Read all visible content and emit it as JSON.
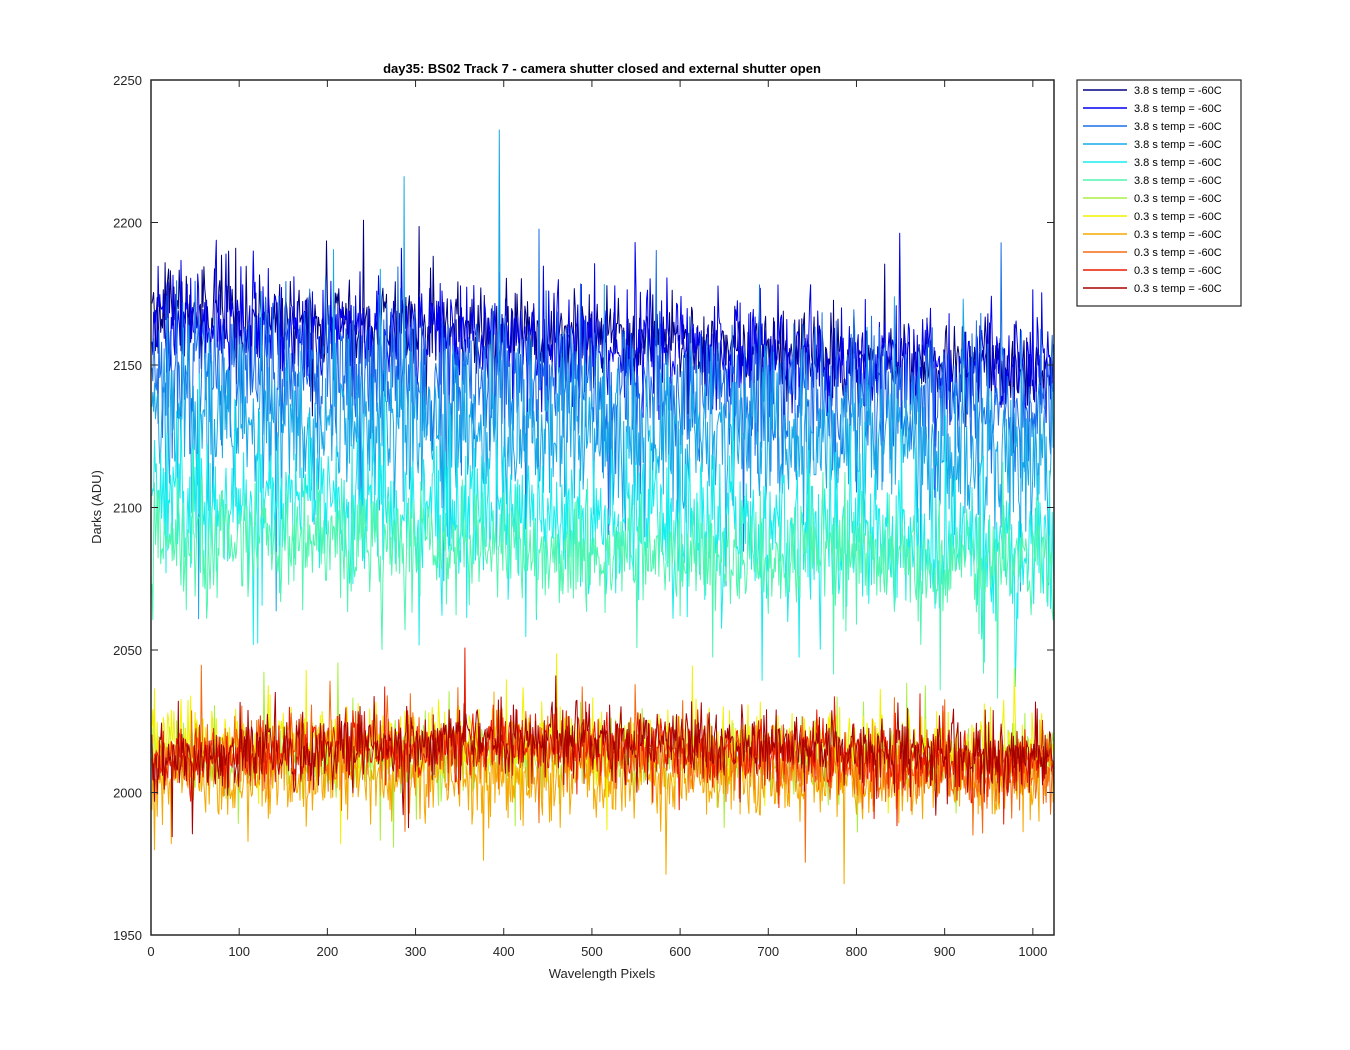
{
  "chart_data": {
    "type": "line",
    "title": "day35: BS02  Track 7 - camera shutter closed and external shutter open",
    "xlabel": "Wavelength Pixels",
    "ylabel": "Darks (ADU)",
    "xlim": [
      0,
      1024
    ],
    "ylim": [
      1950,
      2250
    ],
    "xticks": [
      0,
      100,
      200,
      300,
      400,
      500,
      600,
      700,
      800,
      900,
      1000
    ],
    "yticks": [
      1950,
      2000,
      2050,
      2100,
      2150,
      2200,
      2250
    ],
    "grid": false,
    "legend_position": "outside-top-right",
    "series": [
      {
        "name": "3.8 s temp = -60C",
        "color": "#00007f",
        "mean_start": 2170,
        "mean_end": 2148,
        "spread": 10
      },
      {
        "name": "3.8 s temp = -60C",
        "color": "#0000ee",
        "mean_start": 2165,
        "mean_end": 2148,
        "spread": 14
      },
      {
        "name": "3.8 s temp = -60C",
        "color": "#1a6fe8",
        "mean_start": 2148,
        "mean_end": 2135,
        "spread": 18
      },
      {
        "name": "3.8 s temp = -60C",
        "color": "#17a8e8",
        "mean_start": 2130,
        "mean_end": 2120,
        "spread": 20
      },
      {
        "name": "3.8 s temp = -60C",
        "color": "#18eded",
        "mean_start": 2105,
        "mean_end": 2085,
        "spread": 18
      },
      {
        "name": "3.8 s temp = -60C",
        "color": "#50f5b0",
        "mean_start": 2090,
        "mean_end": 2080,
        "spread": 14
      },
      {
        "name": "0.3 s temp = -60C",
        "color": "#a8f040",
        "mean_start": 2012,
        "mean_end": 2012,
        "spread": 9
      },
      {
        "name": "0.3 s temp = -60C",
        "color": "#f2f200",
        "mean_start": 2018,
        "mean_end": 2015,
        "spread": 10
      },
      {
        "name": "0.3 s temp = -60C",
        "color": "#f5a800",
        "mean_start": 2005,
        "mean_end": 2005,
        "spread": 10
      },
      {
        "name": "0.3 s temp = -60C",
        "color": "#f56a10",
        "mean_start": 2012,
        "mean_end": 2010,
        "spread": 9
      },
      {
        "name": "0.3 s temp = -60C",
        "color": "#ec1a00",
        "mean_start": 2010,
        "mean_end": 2015,
        "spread": 8
      },
      {
        "name": "0.3 s temp = -60C",
        "color": "#a80000",
        "mean_start": 2010,
        "mean_end": 2018,
        "spread": 9
      }
    ]
  }
}
